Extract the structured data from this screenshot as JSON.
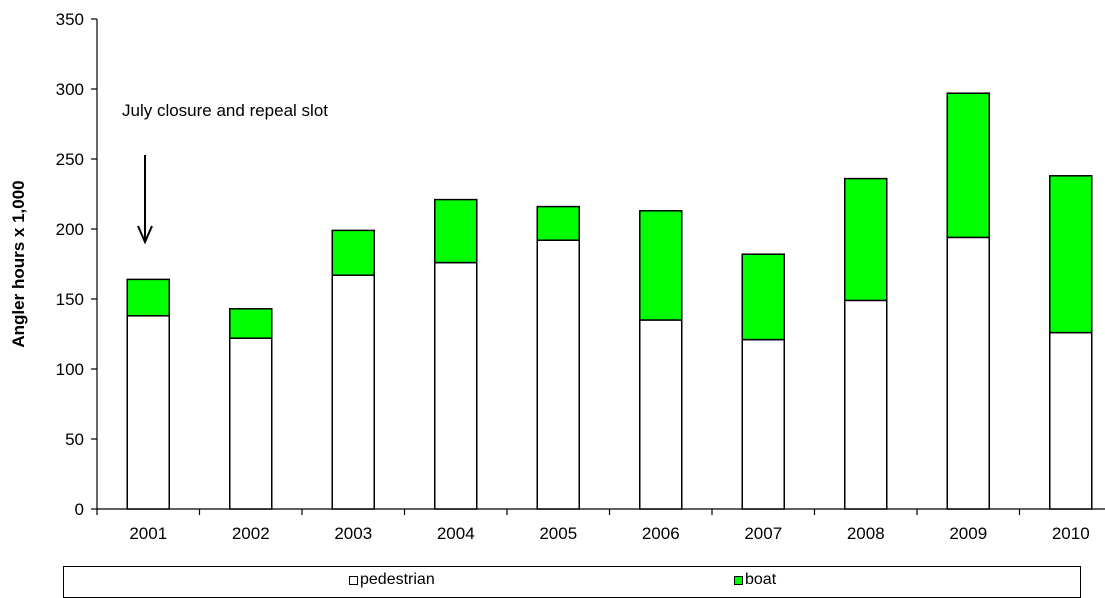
{
  "chart_data": {
    "type": "bar",
    "stacked": true,
    "title": "",
    "xlabel": "",
    "ylabel": "Angler hours x 1,000",
    "ylim": [
      0,
      350
    ],
    "yticks": [
      "0",
      "50",
      "100",
      "150",
      "200",
      "250",
      "300",
      "350"
    ],
    "categories": [
      "2001",
      "2002",
      "2003",
      "2004",
      "2005",
      "2006",
      "2007",
      "2008",
      "2009",
      "2010"
    ],
    "series": [
      {
        "name": "pedestrian",
        "color": "#ffffff",
        "values": [
          138,
          122,
          167,
          176,
          192,
          135,
          121,
          149,
          194,
          126
        ]
      },
      {
        "name": "boat",
        "color": "#00ff00",
        "values": [
          26,
          21,
          32,
          45,
          24,
          78,
          61,
          87,
          103,
          112
        ]
      }
    ],
    "annotation": {
      "text": "July closure  and repeal slot",
      "points_to": "2001"
    },
    "grid": false,
    "legend_position": "bottom"
  }
}
